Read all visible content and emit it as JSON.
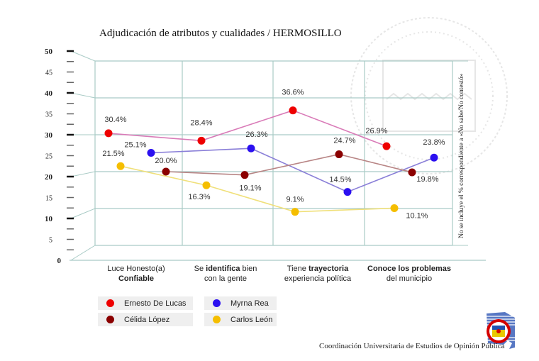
{
  "chart_data": {
    "type": "line",
    "title": "Adjudicación de atributos y cualidades / HERMOSILLO",
    "xlabel": "",
    "ylabel": "",
    "ylim": [
      0,
      50
    ],
    "yticks_major": [
      "0",
      "10",
      "20",
      "30",
      "40",
      "50"
    ],
    "yticks_minor": [
      "5",
      "15",
      "25",
      "35",
      "45"
    ],
    "grid": true,
    "categories": [
      {
        "lines": [
          {
            "text": "Luce Honesto(a)",
            "bold": false
          },
          {
            "text": "Confiable",
            "bold": true
          }
        ]
      },
      {
        "lines": [
          {
            "text": "Se ",
            "bold": false,
            "mid": "identifica",
            "tail": " bien"
          },
          {
            "text": "con la gente",
            "bold": false
          }
        ]
      },
      {
        "lines": [
          {
            "text": "Tiene ",
            "bold": false,
            "mid": "trayectoria",
            "tail": ""
          },
          {
            "text": "experiencia política",
            "bold": false
          }
        ]
      },
      {
        "lines": [
          {
            "text": "Conoce los problemas",
            "bold": true
          },
          {
            "text": "del municipio",
            "bold": false
          }
        ]
      }
    ],
    "series": [
      {
        "name": "Ernesto De Lucas",
        "color": "#ee0000",
        "line_color": "#d97bb8",
        "values": [
          30.4,
          28.4,
          36.6,
          26.9
        ],
        "labels": [
          "30.4%",
          "28.4%",
          "36.6%",
          "26.9%"
        ]
      },
      {
        "name": "Myrna Rea",
        "color": "#2b10f0",
        "line_color": "#8a7fd8",
        "values": [
          25.1,
          26.3,
          14.5,
          23.8
        ],
        "labels": [
          "25.1%",
          "26.3%",
          "14.5%",
          "23.8%"
        ]
      },
      {
        "name": "Célida López",
        "color": "#8b0000",
        "line_color": "#b88585",
        "values": [
          20.0,
          19.1,
          24.7,
          19.8
        ],
        "labels": [
          "20.0%",
          "19.1%",
          "24.7%",
          "19.8%"
        ]
      },
      {
        "name": "Carlos León",
        "color": "#f5be00",
        "line_color": "#f0e07a",
        "values": [
          21.5,
          16.3,
          9.1,
          10.1
        ],
        "labels": [
          "21.5%",
          "16.3%",
          "9.1%",
          "10.1%"
        ]
      }
    ],
    "legend_position": "bottom-left",
    "annotation": "No se incluye el % correspondiente a «No sabe/No contestó»"
  },
  "footer": "Coordinación Universitaria de Estudios de Opinión Pública",
  "logo": "university-seal-icon"
}
